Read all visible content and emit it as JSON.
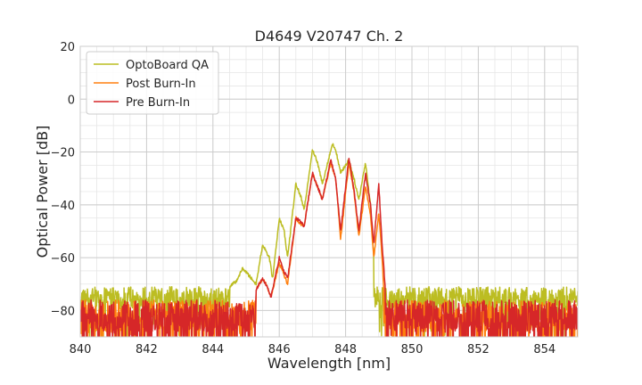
{
  "chart_data": {
    "type": "line",
    "title": "D4649 V20747 Ch. 2",
    "xlabel": "Wavelength [nm]",
    "ylabel": "Optical Power [dB]",
    "xlim": [
      840,
      855
    ],
    "ylim": [
      -90,
      20
    ],
    "xticks": [
      840,
      842,
      844,
      846,
      848,
      850,
      852,
      854
    ],
    "xtick_labels": [
      "840",
      "842",
      "844",
      "846",
      "848",
      "850",
      "852",
      "854"
    ],
    "yticks": [
      -80,
      -60,
      -40,
      -20,
      0,
      20
    ],
    "ytick_labels": [
      "−80",
      "−60",
      "−40",
      "−20",
      "0",
      "20"
    ],
    "x_minor_step": 0.5,
    "y_minor_step": 5,
    "grid": true,
    "legend": "top-left",
    "series": [
      {
        "name": "OptoBoard QA",
        "color": "#bcbd22",
        "noise_mean": -75,
        "noise_amp": 4,
        "noise_extra": 2,
        "peaks": [
          [
            844.9,
            -64
          ],
          [
            845.5,
            -55
          ],
          [
            846.0,
            -45
          ],
          [
            846.5,
            -32
          ],
          [
            847.0,
            -19
          ],
          [
            847.6,
            -17
          ],
          [
            848.1,
            -23
          ],
          [
            848.6,
            -24
          ]
        ],
        "dips": [
          [
            845.3,
            -70
          ],
          [
            845.8,
            -68
          ],
          [
            846.25,
            -60
          ],
          [
            846.75,
            -42
          ],
          [
            847.3,
            -32
          ],
          [
            847.85,
            -28
          ],
          [
            848.4,
            -38
          ]
        ],
        "signal_range": [
          844.5,
          848.85
        ],
        "points": [
          [
            840,
            -73
          ],
          [
            841,
            -73
          ],
          [
            842,
            -74
          ],
          [
            843,
            -73
          ],
          [
            844,
            -71
          ],
          [
            844.5,
            -71
          ],
          [
            844.7,
            -69
          ],
          [
            844.9,
            -64
          ],
          [
            845.1,
            -67
          ],
          [
            845.3,
            -70
          ],
          [
            845.5,
            -55
          ],
          [
            845.7,
            -60
          ],
          [
            845.8,
            -68
          ],
          [
            846.0,
            -45
          ],
          [
            846.15,
            -50
          ],
          [
            846.25,
            -60
          ],
          [
            846.5,
            -32
          ],
          [
            846.65,
            -37
          ],
          [
            846.75,
            -42
          ],
          [
            847.0,
            -19
          ],
          [
            847.15,
            -24
          ],
          [
            847.3,
            -32
          ],
          [
            847.6,
            -17
          ],
          [
            847.7,
            -19
          ],
          [
            847.85,
            -28
          ],
          [
            848.1,
            -23
          ],
          [
            848.25,
            -30
          ],
          [
            848.4,
            -38
          ],
          [
            848.6,
            -24
          ],
          [
            848.75,
            -40
          ],
          [
            848.85,
            -60
          ],
          [
            849.0,
            -71
          ],
          [
            849.2,
            -73
          ],
          [
            849.5,
            -74
          ],
          [
            850,
            -73
          ],
          [
            851,
            -73
          ],
          [
            852,
            -73
          ],
          [
            853,
            -73
          ],
          [
            854,
            -73
          ],
          [
            855,
            -73
          ]
        ]
      },
      {
        "name": "Post Burn-In",
        "color": "#ff7f0e",
        "noise_mean": -82,
        "noise_amp": 6,
        "noise_extra": 6,
        "peaks": [
          [
            845.5,
            -68
          ],
          [
            846.0,
            -62
          ],
          [
            846.5,
            -45
          ],
          [
            847.0,
            -28
          ],
          [
            847.55,
            -24
          ],
          [
            848.1,
            -24
          ],
          [
            848.6,
            -33
          ],
          [
            849.0,
            -43
          ]
        ],
        "dips": [
          [
            845.75,
            -75
          ],
          [
            846.25,
            -70
          ],
          [
            846.75,
            -48
          ],
          [
            847.3,
            -38
          ],
          [
            847.85,
            -53
          ],
          [
            848.4,
            -52
          ],
          [
            848.85,
            -60
          ]
        ],
        "signal_range": [
          845.3,
          849.15
        ],
        "points": [
          [
            840,
            -80
          ],
          [
            841,
            -80
          ],
          [
            842,
            -80
          ],
          [
            843,
            -80
          ],
          [
            844,
            -80
          ],
          [
            845.3,
            -72
          ],
          [
            845.5,
            -68
          ],
          [
            845.6,
            -70
          ],
          [
            845.75,
            -75
          ],
          [
            846.0,
            -62
          ],
          [
            846.1,
            -65
          ],
          [
            846.25,
            -70
          ],
          [
            846.5,
            -45
          ],
          [
            846.6,
            -47
          ],
          [
            846.75,
            -48
          ],
          [
            847.0,
            -28
          ],
          [
            847.15,
            -33
          ],
          [
            847.3,
            -38
          ],
          [
            847.55,
            -24
          ],
          [
            847.7,
            -30
          ],
          [
            847.85,
            -53
          ],
          [
            848.1,
            -24
          ],
          [
            848.25,
            -35
          ],
          [
            848.4,
            -52
          ],
          [
            848.6,
            -33
          ],
          [
            848.75,
            -44
          ],
          [
            848.85,
            -60
          ],
          [
            849.0,
            -43
          ],
          [
            849.1,
            -60
          ],
          [
            849.15,
            -72
          ],
          [
            849.3,
            -80
          ],
          [
            850,
            -80
          ],
          [
            851,
            -80
          ],
          [
            852,
            -80
          ],
          [
            853,
            -80
          ],
          [
            854,
            -80
          ],
          [
            855,
            -80
          ]
        ]
      },
      {
        "name": "Pre Burn-In",
        "color": "#d62728",
        "noise_mean": -82,
        "noise_amp": 6,
        "noise_extra": 6,
        "peaks": [
          [
            845.5,
            -68
          ],
          [
            846.0,
            -60
          ],
          [
            846.5,
            -45
          ],
          [
            847.0,
            -28
          ],
          [
            847.55,
            -23
          ],
          [
            848.1,
            -22
          ],
          [
            848.6,
            -28
          ],
          [
            849.0,
            -32
          ]
        ],
        "dips": [
          [
            845.75,
            -75
          ],
          [
            846.25,
            -68
          ],
          [
            846.75,
            -48
          ],
          [
            847.3,
            -38
          ],
          [
            847.85,
            -50
          ],
          [
            848.4,
            -50
          ],
          [
            848.85,
            -55
          ]
        ],
        "signal_range": [
          845.3,
          849.2
        ],
        "points": [
          [
            840,
            -80
          ],
          [
            841,
            -80
          ],
          [
            842,
            -80
          ],
          [
            843,
            -80
          ],
          [
            844,
            -80
          ],
          [
            845.3,
            -72
          ],
          [
            845.5,
            -68
          ],
          [
            845.6,
            -70
          ],
          [
            845.75,
            -75
          ],
          [
            846.0,
            -60
          ],
          [
            846.1,
            -64
          ],
          [
            846.25,
            -68
          ],
          [
            846.5,
            -45
          ],
          [
            846.6,
            -46
          ],
          [
            846.75,
            -48
          ],
          [
            847.0,
            -28
          ],
          [
            847.15,
            -33
          ],
          [
            847.3,
            -38
          ],
          [
            847.55,
            -23
          ],
          [
            847.7,
            -30
          ],
          [
            847.85,
            -50
          ],
          [
            848.1,
            -22
          ],
          [
            848.25,
            -34
          ],
          [
            848.4,
            -50
          ],
          [
            848.6,
            -28
          ],
          [
            848.75,
            -40
          ],
          [
            848.85,
            -55
          ],
          [
            849.0,
            -32
          ],
          [
            849.1,
            -55
          ],
          [
            849.2,
            -72
          ],
          [
            849.3,
            -80
          ],
          [
            850,
            -80
          ],
          [
            851,
            -80
          ],
          [
            852,
            -80
          ],
          [
            853,
            -80
          ],
          [
            854,
            -80
          ],
          [
            855,
            -80
          ]
        ]
      }
    ]
  }
}
